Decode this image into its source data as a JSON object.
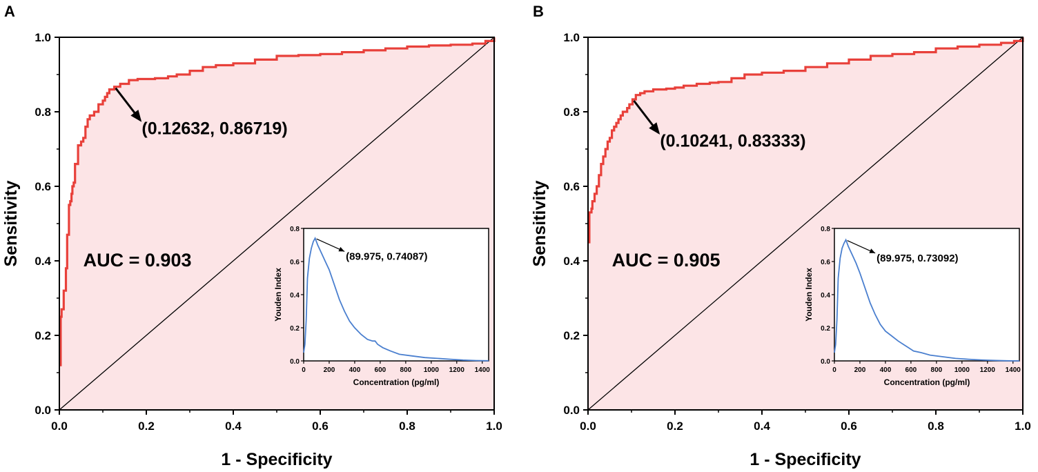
{
  "colors": {
    "roc_line": "#e8403a",
    "roc_fill": "#fce4e6",
    "youden_line": "#4a7fcf",
    "axis": "#000000",
    "diagonal": "#000000"
  },
  "chart_data": [
    {
      "type": "line",
      "panel": "A",
      "xlabel": "1 - Specificity",
      "ylabel": "Sensitivity",
      "xlim": [
        0.0,
        1.0
      ],
      "ylim": [
        0.0,
        1.0
      ],
      "x_ticks": [
        "0.0",
        "0.2",
        "0.4",
        "0.6",
        "0.8",
        "1.0"
      ],
      "y_ticks": [
        "0.0",
        "0.2",
        "0.4",
        "0.6",
        "0.8",
        "1.0"
      ],
      "annotation_auc": "AUC = 0.903",
      "optimal_point": {
        "x": 0.12632,
        "y": 0.86719,
        "label": "(0.12632, 0.86719)"
      },
      "reference_line": {
        "x": [
          0,
          1
        ],
        "y": [
          0,
          1
        ]
      },
      "series": [
        {
          "name": "ROC",
          "x": [
            0,
            0.003,
            0.005,
            0.008,
            0.01,
            0.012,
            0.015,
            0.018,
            0.02,
            0.022,
            0.025,
            0.028,
            0.03,
            0.033,
            0.036,
            0.04,
            0.043,
            0.046,
            0.05,
            0.055,
            0.06,
            0.065,
            0.07,
            0.08,
            0.09,
            0.1,
            0.105,
            0.11,
            0.115,
            0.12,
            0.12632,
            0.14,
            0.16,
            0.18,
            0.22,
            0.25,
            0.27,
            0.3,
            0.33,
            0.36,
            0.4,
            0.45,
            0.5,
            0.55,
            0.6,
            0.65,
            0.7,
            0.75,
            0.8,
            0.85,
            0.9,
            0.95,
            0.98,
            1.0
          ],
          "y": [
            0.12,
            0.25,
            0.27,
            0.27,
            0.32,
            0.32,
            0.38,
            0.47,
            0.47,
            0.55,
            0.56,
            0.58,
            0.6,
            0.61,
            0.66,
            0.66,
            0.71,
            0.71,
            0.72,
            0.73,
            0.76,
            0.78,
            0.79,
            0.8,
            0.82,
            0.83,
            0.84,
            0.85,
            0.86,
            0.86,
            0.86719,
            0.875,
            0.885,
            0.888,
            0.89,
            0.895,
            0.9,
            0.91,
            0.92,
            0.925,
            0.93,
            0.94,
            0.95,
            0.952,
            0.955,
            0.96,
            0.965,
            0.97,
            0.975,
            0.978,
            0.98,
            0.983,
            0.99,
            1.0
          ]
        }
      ],
      "inset": {
        "type": "line",
        "xlabel": "Concentration (pg/ml)",
        "ylabel": "Youden Index",
        "xlim": [
          0,
          1450
        ],
        "ylim": [
          0.0,
          0.8
        ],
        "x_ticks": [
          "0",
          "200",
          "400",
          "600",
          "800",
          "1000",
          "1200",
          "1400"
        ],
        "y_ticks": [
          "0.0",
          "0.2",
          "0.4",
          "0.6",
          "0.8"
        ],
        "peak": {
          "x": 89.975,
          "y": 0.74087,
          "label": "(89.975, 0.74087)"
        },
        "series": [
          {
            "name": "Youden Index",
            "x": [
              0,
              10,
              20,
              30,
              45,
              60,
              75,
              89.975,
              110,
              140,
              170,
              200,
              240,
              280,
              320,
              360,
              400,
              450,
              500,
              540,
              560,
              580,
              620,
              680,
              750,
              850,
              950,
              1050,
              1150,
              1250,
              1350,
              1450
            ],
            "y": [
              0.05,
              0.1,
              0.25,
              0.5,
              0.62,
              0.68,
              0.72,
              0.74087,
              0.7,
              0.65,
              0.6,
              0.55,
              0.46,
              0.37,
              0.3,
              0.24,
              0.2,
              0.16,
              0.13,
              0.12,
              0.12,
              0.1,
              0.08,
              0.06,
              0.04,
              0.03,
              0.02,
              0.015,
              0.01,
              0.005,
              0.002,
              0.001
            ]
          }
        ]
      }
    },
    {
      "type": "line",
      "panel": "B",
      "xlabel": "1 - Specificity",
      "ylabel": "Sensitivity",
      "xlim": [
        0.0,
        1.0
      ],
      "ylim": [
        0.0,
        1.0
      ],
      "x_ticks": [
        "0.0",
        "0.2",
        "0.4",
        "0.6",
        "0.8",
        "1.0"
      ],
      "y_ticks": [
        "0.0",
        "0.2",
        "0.4",
        "0.6",
        "0.8",
        "1.0"
      ],
      "annotation_auc": "AUC = 0.905",
      "optimal_point": {
        "x": 0.10241,
        "y": 0.83333,
        "label": "(0.10241, 0.83333)"
      },
      "reference_line": {
        "x": [
          0,
          1
        ],
        "y": [
          0,
          1
        ]
      },
      "series": [
        {
          "name": "ROC",
          "x": [
            0,
            0.003,
            0.005,
            0.008,
            0.01,
            0.015,
            0.02,
            0.025,
            0.03,
            0.035,
            0.04,
            0.045,
            0.05,
            0.055,
            0.06,
            0.065,
            0.07,
            0.075,
            0.08,
            0.085,
            0.09,
            0.095,
            0.10241,
            0.11,
            0.12,
            0.13,
            0.15,
            0.18,
            0.2,
            0.22,
            0.25,
            0.28,
            0.3,
            0.33,
            0.36,
            0.4,
            0.45,
            0.5,
            0.55,
            0.6,
            0.65,
            0.7,
            0.75,
            0.8,
            0.85,
            0.9,
            0.95,
            0.98,
            1.0
          ],
          "y": [
            0.45,
            0.53,
            0.53,
            0.54,
            0.56,
            0.58,
            0.6,
            0.63,
            0.66,
            0.68,
            0.7,
            0.72,
            0.73,
            0.75,
            0.76,
            0.77,
            0.78,
            0.79,
            0.8,
            0.8,
            0.81,
            0.82,
            0.83333,
            0.845,
            0.85,
            0.855,
            0.86,
            0.862,
            0.865,
            0.87,
            0.875,
            0.878,
            0.88,
            0.89,
            0.9,
            0.905,
            0.91,
            0.92,
            0.93,
            0.94,
            0.95,
            0.955,
            0.96,
            0.97,
            0.975,
            0.98,
            0.985,
            0.99,
            1.0
          ]
        }
      ],
      "inset": {
        "type": "line",
        "xlabel": "Concentration (pg/ml)",
        "ylabel": "Youden Index",
        "xlim": [
          0,
          1450
        ],
        "ylim": [
          0.0,
          0.8
        ],
        "x_ticks": [
          "0",
          "200",
          "400",
          "600",
          "800",
          "1000",
          "1200",
          "1400"
        ],
        "y_ticks": [
          "0.0",
          "0.2",
          "0.4",
          "0.6",
          "0.8"
        ],
        "peak": {
          "x": 89.975,
          "y": 0.73092,
          "label": "(89.975, 0.73092)"
        },
        "series": [
          {
            "name": "Youden Index",
            "x": [
              0,
              10,
              20,
              30,
              45,
              60,
              75,
              89.975,
              110,
              140,
              170,
              200,
              240,
              280,
              320,
              360,
              400,
              450,
              500,
              540,
              560,
              580,
              620,
              680,
              750,
              850,
              950,
              1050,
              1150,
              1250,
              1350,
              1450
            ],
            "y": [
              0.05,
              0.1,
              0.25,
              0.5,
              0.62,
              0.68,
              0.71,
              0.73092,
              0.69,
              0.64,
              0.59,
              0.53,
              0.44,
              0.35,
              0.28,
              0.22,
              0.18,
              0.15,
              0.12,
              0.1,
              0.09,
              0.08,
              0.06,
              0.05,
              0.035,
              0.025,
              0.015,
              0.01,
              0.006,
              0.003,
              0.001,
              0.0
            ]
          }
        ]
      }
    }
  ]
}
